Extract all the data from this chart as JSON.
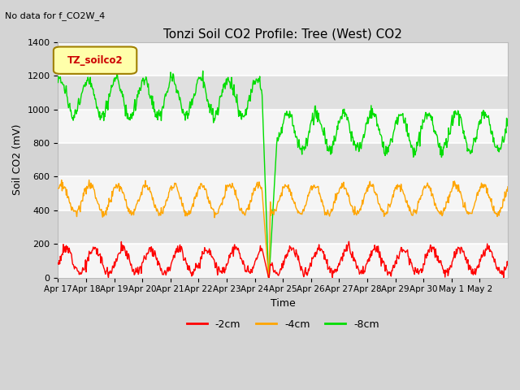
{
  "title": "Tonzi Soil CO2 Profile: Tree (West) CO2",
  "subtitle": "No data for f_CO2W_4",
  "ylabel": "Soil CO2 (mV)",
  "xlabel": "Time",
  "legend_label": "TZ_soilco2",
  "legend_entries": [
    "-2cm",
    "-4cm",
    "-8cm"
  ],
  "legend_colors": [
    "#ff0000",
    "#ffa500",
    "#00dd00"
  ],
  "ylim": [
    0,
    1400
  ],
  "yticks": [
    0,
    200,
    400,
    600,
    800,
    1000,
    1200,
    1400
  ],
  "x_tick_labels": [
    "Apr 17",
    "Apr 18",
    "Apr 19",
    "Apr 20",
    "Apr 21",
    "Apr 22",
    "Apr 23",
    "Apr 24",
    "Apr 25",
    "Apr 26",
    "Apr 27",
    "Apr 28",
    "Apr 29",
    "Apr 30",
    "May 1",
    "May 2"
  ],
  "color_2cm": "#ff0000",
  "color_4cm": "#ffa500",
  "color_8cm": "#00dd00",
  "fig_bg": "#d0d0d0",
  "plot_bg": "#e8e8e8",
  "grid_bg_light": "#f0f0f0",
  "grid_bg_dark": "#e0e0e0"
}
